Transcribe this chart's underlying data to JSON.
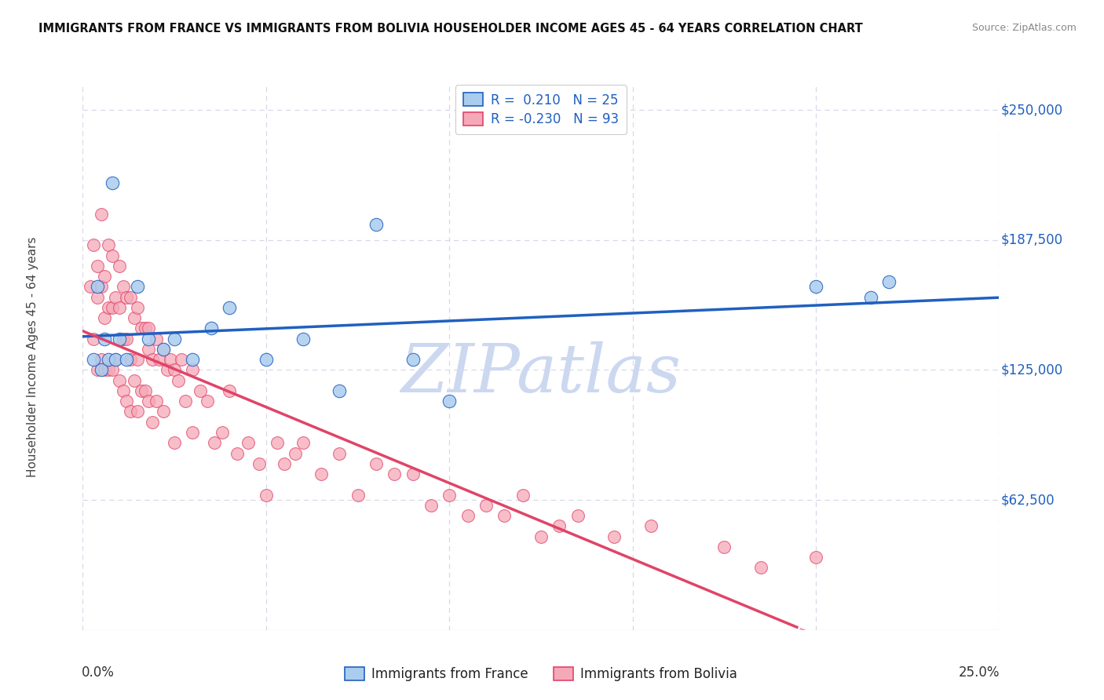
{
  "title": "IMMIGRANTS FROM FRANCE VS IMMIGRANTS FROM BOLIVIA HOUSEHOLDER INCOME AGES 45 - 64 YEARS CORRELATION CHART",
  "source": "Source: ZipAtlas.com",
  "ylabel_label": "Householder Income Ages 45 - 64 years",
  "yticks": [
    0,
    62500,
    125000,
    187500,
    250000
  ],
  "ytick_labels": [
    "",
    "$62,500",
    "$125,000",
    "$187,500",
    "$250,000"
  ],
  "xlim": [
    0.0,
    0.25
  ],
  "ylim": [
    0,
    262500
  ],
  "france_R": 0.21,
  "france_N": 25,
  "bolivia_R": -0.23,
  "bolivia_N": 93,
  "france_color": "#aaccee",
  "bolivia_color": "#f5a8b8",
  "france_line_color": "#2060c0",
  "bolivia_line_color": "#e04468",
  "background_color": "#ffffff",
  "grid_color": "#d8d8e8",
  "watermark": "ZIPatlas",
  "watermark_color": "#ccd8f0",
  "france_scatter_x": [
    0.003,
    0.004,
    0.005,
    0.006,
    0.007,
    0.008,
    0.009,
    0.01,
    0.012,
    0.015,
    0.018,
    0.022,
    0.025,
    0.03,
    0.035,
    0.04,
    0.05,
    0.06,
    0.07,
    0.08,
    0.09,
    0.1,
    0.2,
    0.215,
    0.22
  ],
  "france_scatter_y": [
    130000,
    165000,
    125000,
    140000,
    130000,
    215000,
    130000,
    140000,
    130000,
    165000,
    140000,
    135000,
    140000,
    130000,
    145000,
    155000,
    130000,
    140000,
    115000,
    195000,
    130000,
    110000,
    165000,
    160000,
    167500
  ],
  "bolivia_scatter_x": [
    0.002,
    0.003,
    0.003,
    0.004,
    0.004,
    0.004,
    0.005,
    0.005,
    0.005,
    0.006,
    0.006,
    0.006,
    0.007,
    0.007,
    0.007,
    0.008,
    0.008,
    0.008,
    0.009,
    0.009,
    0.01,
    0.01,
    0.01,
    0.011,
    0.011,
    0.011,
    0.012,
    0.012,
    0.012,
    0.013,
    0.013,
    0.013,
    0.014,
    0.014,
    0.015,
    0.015,
    0.015,
    0.016,
    0.016,
    0.017,
    0.017,
    0.018,
    0.018,
    0.018,
    0.019,
    0.019,
    0.02,
    0.02,
    0.021,
    0.022,
    0.022,
    0.023,
    0.024,
    0.025,
    0.025,
    0.026,
    0.027,
    0.028,
    0.03,
    0.03,
    0.032,
    0.034,
    0.036,
    0.038,
    0.04,
    0.042,
    0.045,
    0.048,
    0.05,
    0.053,
    0.055,
    0.058,
    0.06,
    0.065,
    0.07,
    0.075,
    0.08,
    0.085,
    0.09,
    0.095,
    0.1,
    0.105,
    0.11,
    0.115,
    0.12,
    0.125,
    0.13,
    0.135,
    0.145,
    0.155,
    0.175,
    0.185,
    0.2
  ],
  "bolivia_scatter_y": [
    165000,
    185000,
    140000,
    175000,
    160000,
    125000,
    200000,
    165000,
    130000,
    170000,
    150000,
    125000,
    185000,
    155000,
    125000,
    180000,
    155000,
    125000,
    160000,
    130000,
    175000,
    155000,
    120000,
    165000,
    140000,
    115000,
    160000,
    140000,
    110000,
    160000,
    130000,
    105000,
    150000,
    120000,
    155000,
    130000,
    105000,
    145000,
    115000,
    145000,
    115000,
    145000,
    110000,
    135000,
    130000,
    100000,
    140000,
    110000,
    130000,
    135000,
    105000,
    125000,
    130000,
    125000,
    90000,
    120000,
    130000,
    110000,
    125000,
    95000,
    115000,
    110000,
    90000,
    95000,
    115000,
    85000,
    90000,
    80000,
    65000,
    90000,
    80000,
    85000,
    90000,
    75000,
    85000,
    65000,
    80000,
    75000,
    75000,
    60000,
    65000,
    55000,
    60000,
    55000,
    65000,
    45000,
    50000,
    55000,
    45000,
    50000,
    40000,
    30000,
    35000
  ]
}
